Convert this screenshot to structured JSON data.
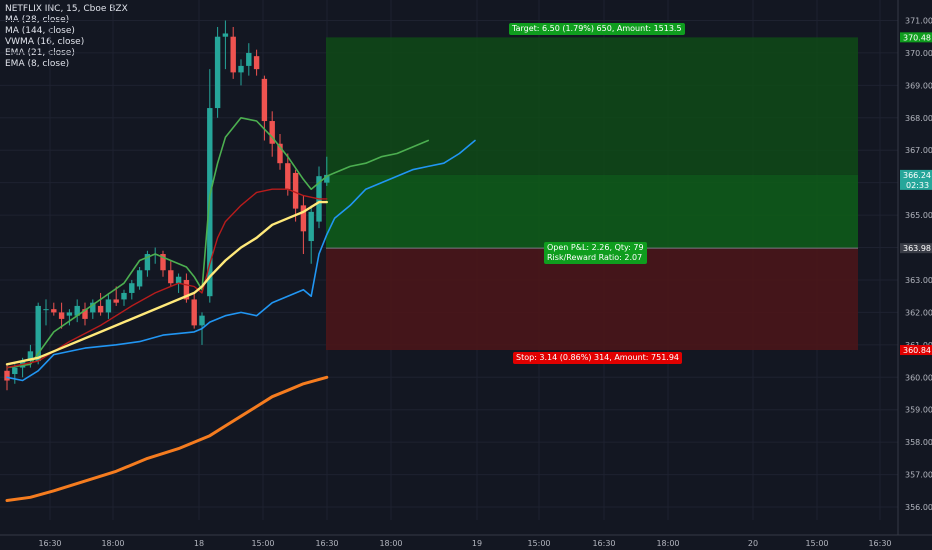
{
  "legend": {
    "symbol": "NETFLIX INC, 15, Cboe BZX",
    "indicators": [
      "MA (28, close)",
      "MA (144, close)",
      "VWMA (16, close)",
      "EMA (21, close)",
      "EMA (8, close)"
    ]
  },
  "position": {
    "target_label": "Target: 6.50 (1.79%) 650, Amount: 1513.5",
    "stop_label": "Stop: 3.14 (0.86%) 314, Amount: 751.94",
    "pnl_label": "Open P&L: 2.26, Qty: 79",
    "rr_label": "Risk/Reward Ratio: 2.07",
    "target_price": 370.48,
    "entry_price": 363.98,
    "stop_price": 360.84,
    "current_price": 366.24,
    "countdown": "02:33"
  },
  "colors": {
    "background": "#131722",
    "up": "#26a69a",
    "down": "#ef5350",
    "target_zone": "#0f4a16",
    "stop_zone": "#4a1519",
    "ema8": "#4caf50",
    "ema21": "#b71c1c",
    "vwma": "#ffe97a",
    "ma28": "#2196f3",
    "ma144": "#f57c1f"
  },
  "chart_data": {
    "type": "candlestick",
    "ylim": [
      355.6,
      371.2
    ],
    "y_ticks": [
      356.0,
      357.0,
      358.0,
      359.0,
      360.0,
      361.0,
      362.0,
      363.0,
      364.0,
      365.0,
      366.0,
      367.0,
      368.0,
      369.0,
      370.0,
      371.0
    ],
    "x_tick_labels": [
      "16:30",
      "18:00",
      "18",
      "15:00",
      "16:30",
      "18:00",
      "19",
      "15:00",
      "16:30",
      "18:00",
      "20",
      "15:00",
      "16:30"
    ],
    "candles": [
      {
        "o": 360.2,
        "h": 360.4,
        "l": 359.6,
        "c": 359.9
      },
      {
        "o": 360.1,
        "h": 360.4,
        "l": 359.8,
        "c": 360.3
      },
      {
        "o": 360.3,
        "h": 360.6,
        "l": 360.0,
        "c": 360.5
      },
      {
        "o": 360.5,
        "h": 361.0,
        "l": 360.3,
        "c": 360.8
      },
      {
        "o": 360.5,
        "h": 362.3,
        "l": 360.4,
        "c": 362.2
      },
      {
        "o": 362.1,
        "h": 362.4,
        "l": 361.6,
        "c": 362.1
      },
      {
        "o": 362.1,
        "h": 362.3,
        "l": 361.9,
        "c": 362.0
      },
      {
        "o": 362.0,
        "h": 362.3,
        "l": 361.5,
        "c": 361.8
      },
      {
        "o": 361.9,
        "h": 362.1,
        "l": 361.6,
        "c": 362.0
      },
      {
        "o": 361.9,
        "h": 362.4,
        "l": 361.7,
        "c": 362.2
      },
      {
        "o": 362.1,
        "h": 362.3,
        "l": 361.6,
        "c": 361.8
      },
      {
        "o": 362.0,
        "h": 362.4,
        "l": 361.8,
        "c": 362.3
      },
      {
        "o": 362.2,
        "h": 362.6,
        "l": 361.9,
        "c": 362.0
      },
      {
        "o": 362.0,
        "h": 362.6,
        "l": 361.8,
        "c": 362.4
      },
      {
        "o": 362.4,
        "h": 362.8,
        "l": 362.2,
        "c": 362.3
      },
      {
        "o": 362.4,
        "h": 362.7,
        "l": 362.2,
        "c": 362.6
      },
      {
        "o": 362.6,
        "h": 363.0,
        "l": 362.4,
        "c": 362.9
      },
      {
        "o": 362.8,
        "h": 363.4,
        "l": 362.7,
        "c": 363.3
      },
      {
        "o": 363.3,
        "h": 363.9,
        "l": 363.1,
        "c": 363.8
      },
      {
        "o": 363.8,
        "h": 364.0,
        "l": 363.5,
        "c": 363.8
      },
      {
        "o": 363.8,
        "h": 363.9,
        "l": 363.1,
        "c": 363.3
      },
      {
        "o": 363.3,
        "h": 363.6,
        "l": 362.8,
        "c": 362.9
      },
      {
        "o": 362.9,
        "h": 363.2,
        "l": 362.6,
        "c": 363.1
      },
      {
        "o": 363.0,
        "h": 363.2,
        "l": 362.3,
        "c": 362.4
      },
      {
        "o": 362.4,
        "h": 362.6,
        "l": 361.5,
        "c": 361.6
      },
      {
        "o": 361.6,
        "h": 362.0,
        "l": 361.0,
        "c": 361.9
      },
      {
        "o": 362.5,
        "h": 369.5,
        "l": 362.3,
        "c": 368.3
      },
      {
        "o": 368.3,
        "h": 370.8,
        "l": 368.0,
        "c": 370.5
      },
      {
        "o": 370.5,
        "h": 371.0,
        "l": 369.5,
        "c": 370.6
      },
      {
        "o": 370.5,
        "h": 370.8,
        "l": 369.2,
        "c": 369.4
      },
      {
        "o": 369.4,
        "h": 369.8,
        "l": 369.0,
        "c": 369.6
      },
      {
        "o": 369.6,
        "h": 370.3,
        "l": 369.3,
        "c": 370.0
      },
      {
        "o": 369.9,
        "h": 370.1,
        "l": 369.3,
        "c": 369.5
      },
      {
        "o": 369.2,
        "h": 369.3,
        "l": 367.3,
        "c": 367.9
      },
      {
        "o": 367.9,
        "h": 368.2,
        "l": 366.8,
        "c": 367.2
      },
      {
        "o": 367.2,
        "h": 367.5,
        "l": 366.4,
        "c": 366.6
      },
      {
        "o": 366.6,
        "h": 366.9,
        "l": 365.6,
        "c": 365.8
      },
      {
        "o": 366.3,
        "h": 366.4,
        "l": 364.8,
        "c": 365.2
      },
      {
        "o": 365.3,
        "h": 365.6,
        "l": 363.8,
        "c": 364.5
      },
      {
        "o": 364.2,
        "h": 365.3,
        "l": 363.5,
        "c": 365.1
      },
      {
        "o": 364.8,
        "h": 366.5,
        "l": 364.6,
        "c": 366.2
      },
      {
        "o": 366.0,
        "h": 366.8,
        "l": 365.9,
        "c": 366.24
      }
    ],
    "series": [
      {
        "name": "EMA (8, close)",
        "key": "ema8",
        "points": [
          [
            0,
            360.3
          ],
          [
            3,
            360.4
          ],
          [
            6,
            361.4
          ],
          [
            9,
            361.9
          ],
          [
            12,
            362.4
          ],
          [
            15,
            362.9
          ],
          [
            17,
            363.6
          ],
          [
            19,
            363.8
          ],
          [
            21,
            363.6
          ],
          [
            23,
            363.4
          ],
          [
            24,
            363.1
          ],
          [
            25,
            362.7
          ],
          [
            26,
            365.6
          ],
          [
            27,
            366.6
          ],
          [
            28,
            367.4
          ],
          [
            30,
            368.0
          ],
          [
            32,
            367.9
          ],
          [
            34,
            367.4
          ],
          [
            36,
            366.8
          ],
          [
            38,
            366.1
          ],
          [
            39,
            365.8
          ],
          [
            40,
            366.0
          ],
          [
            41,
            366.2
          ],
          [
            42,
            366.3
          ],
          [
            44,
            366.5
          ],
          [
            46,
            366.6
          ],
          [
            48,
            366.8
          ],
          [
            50,
            366.9
          ],
          [
            52,
            367.1
          ],
          [
            54,
            367.3
          ]
        ]
      },
      {
        "name": "EMA (21, close)",
        "key": "ema21",
        "points": [
          [
            0,
            360.3
          ],
          [
            4,
            360.5
          ],
          [
            8,
            361.1
          ],
          [
            12,
            361.6
          ],
          [
            16,
            362.2
          ],
          [
            19,
            362.6
          ],
          [
            22,
            362.9
          ],
          [
            24,
            362.8
          ],
          [
            25,
            362.6
          ],
          [
            26,
            363.5
          ],
          [
            27,
            364.3
          ],
          [
            28,
            364.8
          ],
          [
            30,
            365.3
          ],
          [
            32,
            365.7
          ],
          [
            34,
            365.8
          ],
          [
            36,
            365.8
          ],
          [
            38,
            365.6
          ],
          [
            40,
            365.5
          ],
          [
            41,
            365.5
          ]
        ]
      },
      {
        "name": "VWMA (16, close)",
        "key": "vwma",
        "points": [
          [
            0,
            360.4
          ],
          [
            4,
            360.6
          ],
          [
            8,
            361.0
          ],
          [
            12,
            361.4
          ],
          [
            16,
            361.8
          ],
          [
            20,
            362.2
          ],
          [
            24,
            362.6
          ],
          [
            25,
            362.8
          ],
          [
            26,
            363.1
          ],
          [
            28,
            363.6
          ],
          [
            30,
            364.0
          ],
          [
            32,
            364.3
          ],
          [
            34,
            364.7
          ],
          [
            36,
            364.9
          ],
          [
            38,
            365.1
          ],
          [
            40,
            365.4
          ],
          [
            41,
            365.4
          ]
        ]
      },
      {
        "name": "MA (28, close)",
        "key": "ma28",
        "points": [
          [
            0,
            360.0
          ],
          [
            2,
            359.9
          ],
          [
            4,
            360.2
          ],
          [
            6,
            360.7
          ],
          [
            10,
            360.9
          ],
          [
            14,
            361.0
          ],
          [
            17,
            361.1
          ],
          [
            20,
            361.3
          ],
          [
            24,
            361.4
          ],
          [
            25,
            361.5
          ],
          [
            26,
            361.7
          ],
          [
            28,
            361.9
          ],
          [
            30,
            362.0
          ],
          [
            32,
            361.9
          ],
          [
            34,
            362.3
          ],
          [
            36,
            362.5
          ],
          [
            38,
            362.7
          ],
          [
            39,
            362.5
          ],
          [
            40,
            363.8
          ],
          [
            41,
            364.4
          ],
          [
            42,
            364.9
          ],
          [
            44,
            365.3
          ],
          [
            46,
            365.8
          ],
          [
            48,
            366.0
          ],
          [
            50,
            366.2
          ],
          [
            52,
            366.4
          ],
          [
            54,
            366.5
          ],
          [
            56,
            366.6
          ],
          [
            58,
            366.9
          ],
          [
            60,
            367.3
          ]
        ]
      },
      {
        "name": "MA (144, close)",
        "key": "ma144",
        "points": [
          [
            0,
            356.2
          ],
          [
            3,
            356.3
          ],
          [
            6,
            356.5
          ],
          [
            10,
            356.8
          ],
          [
            14,
            357.1
          ],
          [
            18,
            357.5
          ],
          [
            22,
            357.8
          ],
          [
            26,
            358.2
          ],
          [
            28,
            358.5
          ],
          [
            30,
            358.8
          ],
          [
            32,
            359.1
          ],
          [
            34,
            359.4
          ],
          [
            36,
            359.6
          ],
          [
            38,
            359.8
          ],
          [
            41,
            360.0
          ]
        ]
      }
    ]
  }
}
